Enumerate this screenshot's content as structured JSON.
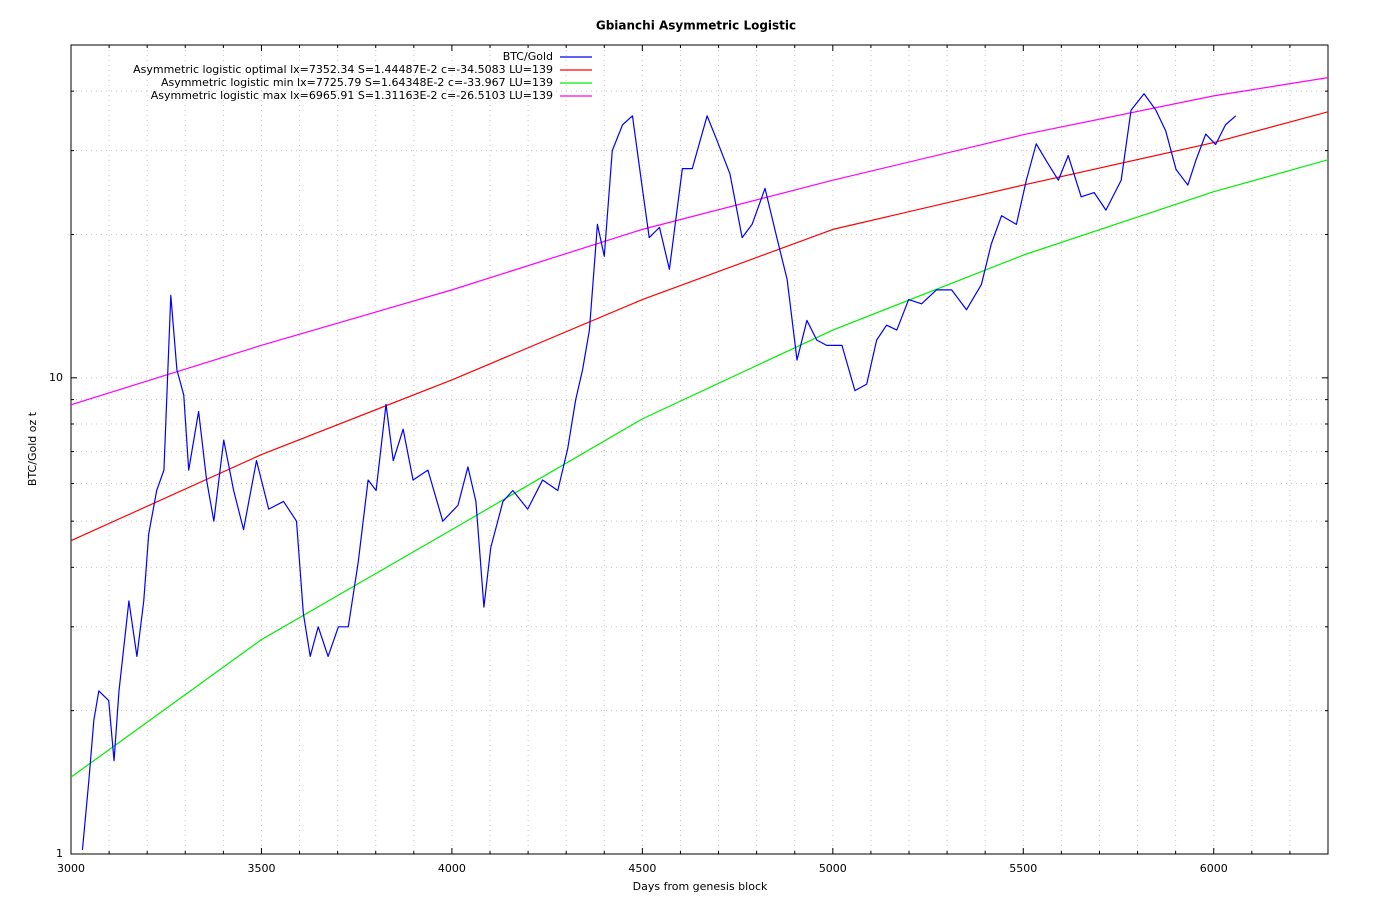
{
  "chart_data": {
    "type": "line",
    "title": "Gbianchi Asymmetric Logistic",
    "xlabel": "Days from genesis block",
    "ylabel": "BTC/Gold oz t",
    "xlim": [
      3000,
      6300
    ],
    "ylim": [
      1,
      50
    ],
    "ylog": true,
    "xticks": [
      3000,
      3500,
      4000,
      4500,
      5000,
      5500,
      6000
    ],
    "yticks": [
      1,
      10
    ],
    "xminor": [
      3100,
      3200,
      3300,
      3400,
      3600,
      3700,
      3800,
      3900,
      4100,
      4200,
      4300,
      4400,
      4600,
      4700,
      4800,
      4900,
      5100,
      5200,
      5300,
      5400,
      5600,
      5700,
      5800,
      5900,
      6100,
      6200
    ],
    "yminor": [
      2,
      3,
      4,
      5,
      6,
      7,
      8,
      9,
      20,
      30,
      40
    ],
    "grid": true,
    "legend": "top",
    "series": [
      {
        "name": "BTC/Gold",
        "color": "#0000ff",
        "x": [
          3030,
          3047,
          3060,
          3073,
          3099,
          3113,
          3126,
          3152,
          3173,
          3191,
          3204,
          3225,
          3244,
          3262,
          3278,
          3296,
          3309,
          3335,
          3356,
          3375,
          3401,
          3427,
          3453,
          3487,
          3519,
          3558,
          3592,
          3610,
          3628,
          3649,
          3675,
          3702,
          3728,
          3754,
          3780,
          3801,
          3827,
          3846,
          3872,
          3898,
          3937,
          3976,
          4016,
          4042,
          4063,
          4084,
          4102,
          4134,
          4160,
          4199,
          4238,
          4278,
          4304,
          4325,
          4343,
          4361,
          4382,
          4400,
          4421,
          4448,
          4474,
          4500,
          4518,
          4545,
          4571,
          4605,
          4631,
          4670,
          4696,
          4730,
          4762,
          4788,
          4822,
          4853,
          4880,
          4906,
          4932,
          4958,
          4984,
          5024,
          5058,
          5089,
          5115,
          5141,
          5168,
          5199,
          5233,
          5272,
          5312,
          5351,
          5390,
          5416,
          5443,
          5482,
          5508,
          5534,
          5560,
          5592,
          5618,
          5652,
          5686,
          5717,
          5757,
          5783,
          5817,
          5848,
          5874,
          5901,
          5932,
          5953,
          5979,
          6005,
          6031,
          6058
        ],
        "values": [
          1.02,
          1.43,
          1.91,
          2.2,
          2.1,
          1.57,
          2.2,
          3.4,
          2.6,
          3.4,
          4.7,
          5.8,
          6.4,
          14.9,
          10.4,
          9.2,
          6.4,
          8.5,
          6.1,
          5.0,
          7.4,
          5.8,
          4.8,
          6.7,
          5.3,
          5.5,
          5.0,
          3.2,
          2.6,
          3.0,
          2.6,
          3.0,
          3.0,
          4.1,
          6.1,
          5.8,
          8.8,
          6.7,
          7.8,
          6.1,
          6.4,
          5.0,
          5.4,
          6.5,
          5.5,
          3.3,
          4.4,
          5.5,
          5.8,
          5.3,
          6.1,
          5.8,
          7.1,
          9.0,
          10.4,
          12.6,
          21,
          18,
          30,
          34,
          35.5,
          25,
          19.7,
          20.7,
          16.9,
          27.5,
          27.5,
          35.5,
          31.5,
          26.8,
          19.7,
          21,
          25,
          19.7,
          16.1,
          10.9,
          13.2,
          12.0,
          11.7,
          11.7,
          9.4,
          9.7,
          12.0,
          12.9,
          12.6,
          14.6,
          14.3,
          15.3,
          15.3,
          13.9,
          15.7,
          19.1,
          21.9,
          21,
          26,
          31,
          28.6,
          26,
          29.3,
          24,
          24.5,
          22.5,
          26,
          36.5,
          39.5,
          36.5,
          33,
          27.4,
          25.4,
          28.6,
          32.5,
          30.9,
          34,
          35.5
        ]
      },
      {
        "name": "Asymmetric logistic optimal lx=7352.34 S=1.44487E-2 c=-34.5083 LU=139",
        "color": "#ff0000",
        "x": [
          3000,
          3500,
          4000,
          4500,
          5000,
          5500,
          6000,
          6300
        ],
        "values": [
          4.55,
          6.9,
          9.9,
          14.6,
          20.5,
          25.4,
          31.2,
          36.2
        ]
      },
      {
        "name": "Asymmetric logistic min lx=7725.79 S=1.64348E-2 c=-33.967 LU=139",
        "color": "#00ee00",
        "x": [
          3000,
          3500,
          4000,
          4500,
          5000,
          5500,
          6000,
          6300
        ],
        "values": [
          1.45,
          2.82,
          4.8,
          8.2,
          12.6,
          18.1,
          24.6,
          28.7
        ]
      },
      {
        "name": "Asymmetric logistic max lx=6965.91 S=1.31163E-2 c=-26.5103 LU=139",
        "color": "#ff00ff",
        "x": [
          3000,
          3500,
          4000,
          4500,
          5000,
          5500,
          6000,
          6300
        ],
        "values": [
          8.78,
          11.7,
          15.3,
          20.5,
          26,
          32.4,
          39.1,
          42.7
        ]
      }
    ]
  }
}
